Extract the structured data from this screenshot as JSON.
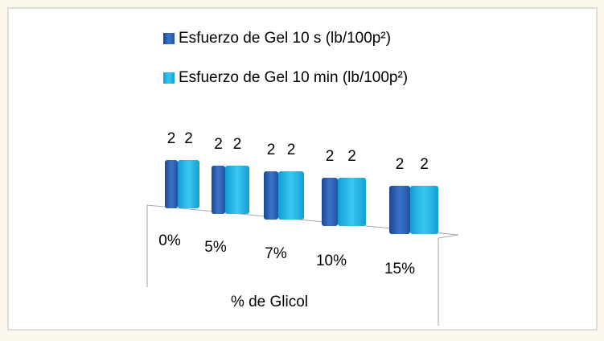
{
  "chart_data": {
    "type": "bar3d",
    "categories": [
      "0%",
      "5%",
      "7%",
      "10%",
      "15%"
    ],
    "series": [
      {
        "name": "Esfuerzo de Gel 10 s (lb/100p²)",
        "color": "#2f64b8",
        "values": [
          2,
          2,
          2,
          2,
          2
        ]
      },
      {
        "name": "Esfuerzo de Gel 10 min (lb/100p²)",
        "color": "#1eb3e8",
        "values": [
          2,
          2,
          2,
          2,
          2
        ]
      }
    ],
    "xlabel": "% de Glicol",
    "legend": "top"
  }
}
